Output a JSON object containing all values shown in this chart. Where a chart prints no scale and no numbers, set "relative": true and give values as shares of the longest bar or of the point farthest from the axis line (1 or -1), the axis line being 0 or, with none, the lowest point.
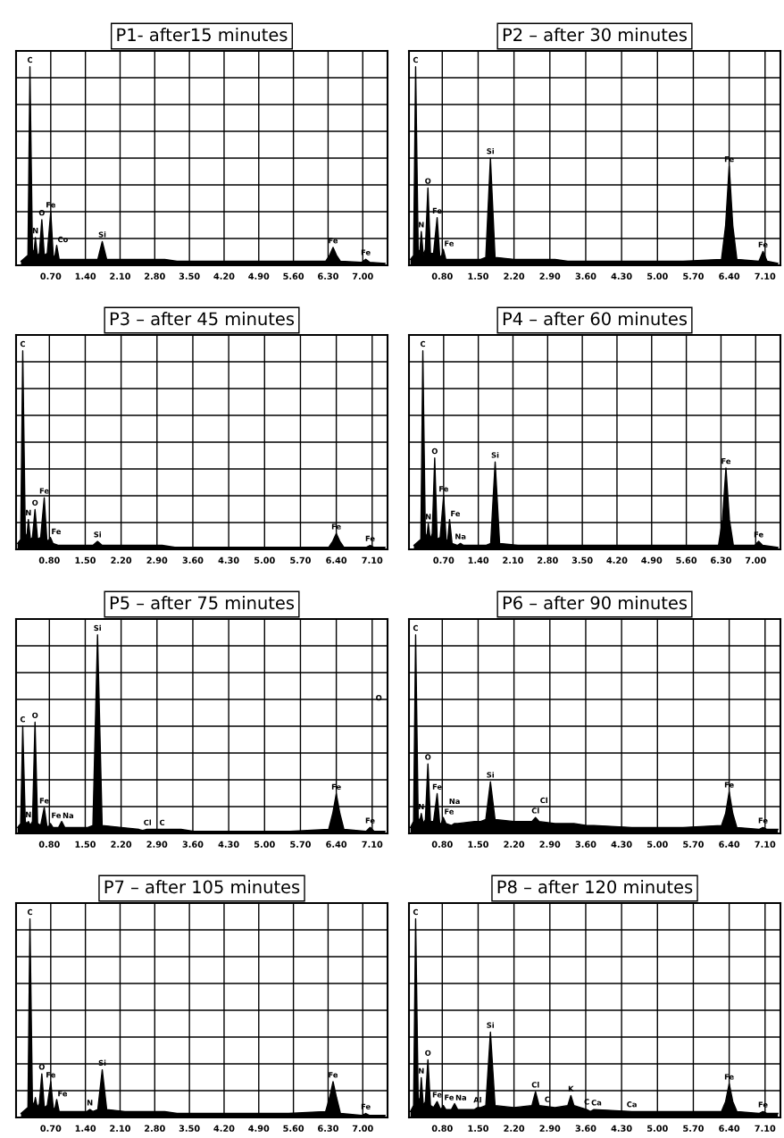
{
  "chart_data": [
    {
      "type": "area",
      "title": "P1- after15 minutes",
      "relative": true,
      "grid": true,
      "xlim": [
        0,
        7.5
      ],
      "xticks": [
        {
          "value": 0.7,
          "label": "0.70"
        },
        {
          "value": 1.4,
          "label": "1.40"
        },
        {
          "value": 2.1,
          "label": "2.10"
        },
        {
          "value": 2.8,
          "label": "2.80"
        },
        {
          "value": 3.5,
          "label": "3.50"
        },
        {
          "value": 4.2,
          "label": "4.20"
        },
        {
          "value": 4.9,
          "label": "4.90"
        },
        {
          "value": 5.6,
          "label": "5.60"
        },
        {
          "value": 6.3,
          "label": "6.30"
        },
        {
          "value": 7.0,
          "label": "7.00"
        }
      ],
      "x": [
        0.1,
        0.24,
        0.28,
        0.33,
        0.36,
        0.39,
        0.43,
        0.47,
        0.52,
        0.57,
        0.63,
        0.7,
        0.75,
        0.78,
        0.82,
        0.87,
        0.98,
        1.04,
        1.1,
        1.43,
        1.49,
        1.55,
        1.65,
        1.74,
        1.83,
        2.2,
        2.55,
        2.62,
        2.69,
        3.0,
        3.25,
        3.31,
        3.37,
        3.62,
        3.69,
        3.76,
        4.5,
        5.5,
        6.25,
        6.33,
        6.4,
        6.47,
        6.55,
        6.98,
        7.06,
        7.14,
        7.45
      ],
      "series": [
        {
          "color": "#000000",
          "values": [
            0.02,
            0.05,
            1,
            0.08,
            0.06,
            0.14,
            0.05,
            0.06,
            0.23,
            0.05,
            0.06,
            0.27,
            0.05,
            0.04,
            0.1,
            0.03,
            0.03,
            0.03,
            0.03,
            0.03,
            0.03,
            0.03,
            0.03,
            0.12,
            0.03,
            0.03,
            0.03,
            0.03,
            0.03,
            0.03,
            0.02,
            0.02,
            0.02,
            0.02,
            0.02,
            0.02,
            0.02,
            0.02,
            0.02,
            0.05,
            0.09,
            0.05,
            0.02,
            0.015,
            0.03,
            0.015,
            0.01
          ]
        }
      ],
      "annotations": [
        {
          "text": "C",
          "x": 0.28,
          "y": 1
        },
        {
          "text": "N",
          "x": 0.39,
          "y": 0.14
        },
        {
          "text": "O",
          "x": 0.52,
          "y": 0.23
        },
        {
          "text": "Fe",
          "x": 0.7,
          "y": 0.27
        },
        {
          "text": "Co",
          "x": 0.82,
          "y": 0.1
        },
        {
          "text": "Si",
          "x": 1.74,
          "y": 0.12
        },
        {
          "text": "Fe",
          "x": 6.4,
          "y": 0.09
        },
        {
          "text": "Fe",
          "x": 7.06,
          "y": 0.03
        }
      ]
    },
    {
      "type": "area",
      "title": "P2 – after 30 minutes",
      "relative": true,
      "grid": true,
      "xlim": [
        0.15,
        7.4
      ],
      "xticks": [
        {
          "value": 0.8,
          "label": "0.80"
        },
        {
          "value": 1.5,
          "label": "1.50"
        },
        {
          "value": 2.2,
          "label": "2.20"
        },
        {
          "value": 2.9,
          "label": "2.90"
        },
        {
          "value": 3.6,
          "label": "3.60"
        },
        {
          "value": 4.3,
          "label": "4.30"
        },
        {
          "value": 5.0,
          "label": "5.00"
        },
        {
          "value": 5.7,
          "label": "5.70"
        },
        {
          "value": 6.4,
          "label": "6.40"
        },
        {
          "value": 7.1,
          "label": "7.10"
        }
      ],
      "x": [
        0.18,
        0.24,
        0.28,
        0.33,
        0.36,
        0.39,
        0.43,
        0.47,
        0.52,
        0.57,
        0.63,
        0.7,
        0.75,
        0.78,
        0.82,
        0.87,
        0.98,
        1.04,
        1.1,
        1.43,
        1.49,
        1.55,
        1.65,
        1.74,
        1.83,
        2.2,
        2.55,
        2.62,
        2.69,
        3.0,
        3.25,
        3.31,
        3.37,
        3.62,
        3.69,
        3.76,
        4.5,
        5.5,
        6.25,
        6.33,
        6.4,
        6.47,
        6.55,
        6.98,
        7.06,
        7.14,
        7.35
      ],
      "series": [
        {
          "color": "#000000",
          "values": [
            0.03,
            0.05,
            1,
            0.08,
            0.06,
            0.17,
            0.05,
            0.08,
            0.39,
            0.06,
            0.06,
            0.24,
            0.05,
            0.04,
            0.08,
            0.03,
            0.03,
            0.03,
            0.03,
            0.03,
            0.03,
            0.03,
            0.04,
            0.54,
            0.04,
            0.03,
            0.03,
            0.03,
            0.03,
            0.03,
            0.02,
            0.02,
            0.02,
            0.02,
            0.02,
            0.02,
            0.02,
            0.02,
            0.03,
            0.2,
            0.5,
            0.2,
            0.03,
            0.02,
            0.07,
            0.02,
            0.01
          ]
        }
      ],
      "annotations": [
        {
          "text": "C",
          "x": 0.28,
          "y": 1
        },
        {
          "text": "N",
          "x": 0.39,
          "y": 0.17
        },
        {
          "text": "O",
          "x": 0.52,
          "y": 0.39
        },
        {
          "text": "Fe",
          "x": 0.7,
          "y": 0.24
        },
        {
          "text": "Fe",
          "x": 0.82,
          "y": 0.08
        },
        {
          "text": "Si",
          "x": 1.74,
          "y": 0.54
        },
        {
          "text": "Fe",
          "x": 6.4,
          "y": 0.5
        },
        {
          "text": "Fe",
          "x": 7.06,
          "y": 0.07
        }
      ]
    },
    {
      "type": "area",
      "title": "P3 – after 45 minutes",
      "relative": true,
      "grid": true,
      "xlim": [
        0.15,
        7.4
      ],
      "xticks": [
        {
          "value": 0.8,
          "label": "0.80"
        },
        {
          "value": 1.5,
          "label": "1.50"
        },
        {
          "value": 2.2,
          "label": "2.20"
        },
        {
          "value": 2.9,
          "label": "2.90"
        },
        {
          "value": 3.6,
          "label": "3.60"
        },
        {
          "value": 4.3,
          "label": "4.30"
        },
        {
          "value": 5.0,
          "label": "5.00"
        },
        {
          "value": 5.7,
          "label": "5.70"
        },
        {
          "value": 6.4,
          "label": "6.40"
        },
        {
          "value": 7.1,
          "label": "7.10"
        }
      ],
      "x": [
        0.18,
        0.24,
        0.28,
        0.33,
        0.36,
        0.39,
        0.43,
        0.47,
        0.52,
        0.57,
        0.63,
        0.7,
        0.75,
        0.78,
        0.82,
        0.87,
        0.98,
        1.04,
        1.1,
        1.43,
        1.49,
        1.55,
        1.65,
        1.74,
        1.83,
        2.2,
        2.55,
        2.62,
        2.69,
        3.0,
        3.25,
        3.31,
        3.37,
        3.62,
        3.69,
        3.76,
        4.5,
        5.5,
        6.25,
        6.33,
        6.4,
        6.47,
        6.55,
        6.98,
        7.06,
        7.14,
        7.35
      ],
      "series": [
        {
          "color": "#000000",
          "values": [
            0.03,
            0.05,
            1,
            0.08,
            0.06,
            0.15,
            0.05,
            0.06,
            0.2,
            0.05,
            0.06,
            0.26,
            0.05,
            0.04,
            0.06,
            0.03,
            0.02,
            0.02,
            0.02,
            0.02,
            0.02,
            0.02,
            0.02,
            0.04,
            0.02,
            0.02,
            0.02,
            0.02,
            0.02,
            0.02,
            0.01,
            0.01,
            0.01,
            0.01,
            0.01,
            0.01,
            0.01,
            0.01,
            0.01,
            0.04,
            0.08,
            0.04,
            0.01,
            0.01,
            0.02,
            0.01,
            0.01
          ]
        }
      ],
      "annotations": [
        {
          "text": "C",
          "x": 0.28,
          "y": 1
        },
        {
          "text": "N",
          "x": 0.39,
          "y": 0.15
        },
        {
          "text": "O",
          "x": 0.52,
          "y": 0.2
        },
        {
          "text": "Fe",
          "x": 0.7,
          "y": 0.26
        },
        {
          "text": "Fe",
          "x": 0.82,
          "y": 0.06
        },
        {
          "text": "Si",
          "x": 1.74,
          "y": 0.04
        },
        {
          "text": "Fe",
          "x": 6.4,
          "y": 0.08
        },
        {
          "text": "Fe",
          "x": 7.06,
          "y": 0.02
        }
      ]
    },
    {
      "type": "area",
      "title": "P4 – after 60 minutes",
      "relative": true,
      "grid": true,
      "xlim": [
        0,
        7.5
      ],
      "xticks": [
        {
          "value": 0.7,
          "label": "0.70"
        },
        {
          "value": 1.4,
          "label": "1.40"
        },
        {
          "value": 2.1,
          "label": "2.10"
        },
        {
          "value": 2.8,
          "label": "2.80"
        },
        {
          "value": 3.5,
          "label": "3.50"
        },
        {
          "value": 4.2,
          "label": "4.20"
        },
        {
          "value": 4.9,
          "label": "4.90"
        },
        {
          "value": 5.6,
          "label": "5.60"
        },
        {
          "value": 6.3,
          "label": "6.30"
        },
        {
          "value": 7.0,
          "label": "7.00"
        }
      ],
      "x": [
        0.1,
        0.24,
        0.28,
        0.33,
        0.36,
        0.39,
        0.43,
        0.47,
        0.52,
        0.57,
        0.63,
        0.7,
        0.75,
        0.78,
        0.82,
        0.87,
        0.98,
        1.04,
        1.1,
        1.43,
        1.49,
        1.55,
        1.65,
        1.74,
        1.83,
        2.2,
        2.55,
        2.62,
        2.69,
        3.0,
        3.25,
        3.31,
        3.37,
        3.62,
        3.69,
        3.76,
        4.5,
        5.5,
        6.25,
        6.33,
        6.4,
        6.47,
        6.55,
        6.98,
        7.06,
        7.14,
        7.45
      ],
      "series": [
        {
          "color": "#000000",
          "values": [
            0.02,
            0.05,
            1,
            0.08,
            0.06,
            0.13,
            0.05,
            0.08,
            0.46,
            0.05,
            0.06,
            0.27,
            0.05,
            0.04,
            0.15,
            0.03,
            0.02,
            0.03,
            0.02,
            0.02,
            0.02,
            0.02,
            0.03,
            0.44,
            0.03,
            0.02,
            0.02,
            0.02,
            0.02,
            0.02,
            0.02,
            0.02,
            0.02,
            0.02,
            0.02,
            0.02,
            0.02,
            0.02,
            0.02,
            0.15,
            0.41,
            0.15,
            0.02,
            0.02,
            0.04,
            0.02,
            0.01
          ]
        }
      ],
      "annotations": [
        {
          "text": "C",
          "x": 0.28,
          "y": 1
        },
        {
          "text": "N",
          "x": 0.39,
          "y": 0.13
        },
        {
          "text": "O",
          "x": 0.52,
          "y": 0.46
        },
        {
          "text": "Fe",
          "x": 0.7,
          "y": 0.27
        },
        {
          "text": "Fe",
          "x": 0.82,
          "y": 0.15
        },
        {
          "text": "Na",
          "x": 1.04,
          "y": 0.03
        },
        {
          "text": "Si",
          "x": 1.74,
          "y": 0.44
        },
        {
          "text": "Fe",
          "x": 6.4,
          "y": 0.41
        },
        {
          "text": "Fe",
          "x": 7.06,
          "y": 0.04
        }
      ]
    },
    {
      "type": "area",
      "title": "P5 – after 75 minutes",
      "relative": true,
      "grid": true,
      "xlim": [
        0.15,
        7.4
      ],
      "xticks": [
        {
          "value": 0.8,
          "label": "0.80"
        },
        {
          "value": 1.5,
          "label": "1.50"
        },
        {
          "value": 2.2,
          "label": "2.20"
        },
        {
          "value": 2.9,
          "label": "2.90"
        },
        {
          "value": 3.6,
          "label": "3.60"
        },
        {
          "value": 4.3,
          "label": "4.30"
        },
        {
          "value": 5.0,
          "label": "5.00"
        },
        {
          "value": 5.7,
          "label": "5.70"
        },
        {
          "value": 6.4,
          "label": "6.40"
        },
        {
          "value": 7.1,
          "label": "7.10"
        }
      ],
      "x": [
        0.18,
        0.24,
        0.28,
        0.33,
        0.36,
        0.39,
        0.43,
        0.47,
        0.52,
        0.57,
        0.63,
        0.7,
        0.75,
        0.78,
        0.82,
        0.87,
        0.98,
        1.04,
        1.1,
        1.43,
        1.49,
        1.55,
        1.65,
        1.74,
        1.83,
        2.2,
        2.55,
        2.62,
        2.69,
        3.0,
        3.25,
        3.31,
        3.37,
        3.62,
        3.69,
        3.76,
        4.5,
        5.5,
        6.25,
        6.33,
        6.4,
        6.47,
        6.55,
        6.98,
        7.06,
        7.14,
        7.35
      ],
      "series": [
        {
          "color": "#000000",
          "values": [
            0.03,
            0.05,
            0.54,
            0.06,
            0.05,
            0.06,
            0.04,
            0.06,
            0.56,
            0.05,
            0.04,
            0.13,
            0.04,
            0.03,
            0.05,
            0.03,
            0.03,
            0.06,
            0.03,
            0.03,
            0.03,
            0.03,
            0.04,
            1,
            0.04,
            0.03,
            0.02,
            0.015,
            0.02,
            0.02,
            0.02,
            0.02,
            0.02,
            0.01,
            0.01,
            0.01,
            0.01,
            0.01,
            0.02,
            0.1,
            0.2,
            0.1,
            0.02,
            0.01,
            0.03,
            0.01,
            0.01
          ]
        }
      ],
      "annotations": [
        {
          "text": "C",
          "x": 0.28,
          "y": 0.54
        },
        {
          "text": "O",
          "x": 0.52,
          "y": 0.56
        },
        {
          "text": "Fe",
          "x": 0.7,
          "y": 0.13
        },
        {
          "text": "N",
          "x": 0.39,
          "y": 0.06
        },
        {
          "text": "Fe",
          "x": 0.82,
          "y": 0.05
        },
        {
          "text": "Na",
          "x": 1.04,
          "y": 0.06
        },
        {
          "text": "Si",
          "x": 1.74,
          "y": 1
        },
        {
          "text": "Cl",
          "x": 2.62,
          "y": 0.015
        },
        {
          "text": "C",
          "x": 3.0,
          "y": 0.02
        },
        {
          "text": "Fe",
          "x": 6.4,
          "y": 0.2
        },
        {
          "text": "Fe",
          "x": 7.06,
          "y": 0.03
        },
        "O"
      ]
    },
    {
      "type": "area",
      "title": "P6 – after 90 minutes",
      "relative": true,
      "grid": true,
      "xlim": [
        0.15,
        7.4
      ],
      "xticks": [
        {
          "value": 0.8,
          "label": "0.80"
        },
        {
          "value": 1.5,
          "label": "1.50"
        },
        {
          "value": 2.2,
          "label": "2.20"
        },
        {
          "value": 2.9,
          "label": "2.90"
        },
        {
          "value": 3.6,
          "label": "3.60"
        },
        {
          "value": 4.3,
          "label": "4.30"
        },
        {
          "value": 5.0,
          "label": "5.00"
        },
        {
          "value": 5.7,
          "label": "5.70"
        },
        {
          "value": 6.4,
          "label": "6.40"
        },
        {
          "value": 7.1,
          "label": "7.10"
        }
      ],
      "x": [
        0.18,
        0.24,
        0.28,
        0.33,
        0.36,
        0.39,
        0.43,
        0.47,
        0.52,
        0.57,
        0.63,
        0.7,
        0.75,
        0.78,
        0.82,
        0.87,
        0.98,
        1.04,
        1.1,
        1.43,
        1.49,
        1.55,
        1.65,
        1.74,
        1.83,
        2.2,
        2.55,
        2.62,
        2.69,
        3.0,
        3.25,
        3.31,
        3.37,
        3.62,
        3.69,
        3.76,
        4.5,
        5.5,
        6.25,
        6.33,
        6.4,
        6.47,
        6.55,
        6.98,
        7.06,
        7.14,
        7.35
      ],
      "series": [
        {
          "color": "#000000",
          "values": [
            0.03,
            0.06,
            1,
            0.08,
            0.06,
            0.1,
            0.05,
            0.07,
            0.35,
            0.06,
            0.06,
            0.2,
            0.05,
            0.05,
            0.08,
            0.05,
            0.04,
            0.05,
            0.05,
            0.06,
            0.06,
            0.06,
            0.07,
            0.26,
            0.07,
            0.06,
            0.06,
            0.08,
            0.06,
            0.05,
            0.05,
            0.05,
            0.05,
            0.04,
            0.04,
            0.04,
            0.03,
            0.03,
            0.04,
            0.1,
            0.21,
            0.1,
            0.03,
            0.02,
            0.03,
            0.02,
            0.02
          ]
        }
      ],
      "annotations": [
        {
          "text": "C",
          "x": 0.28,
          "y": 1
        },
        {
          "text": "O",
          "x": 0.52,
          "y": 0.35
        },
        {
          "text": "Fe",
          "x": 0.7,
          "y": 0.2
        },
        {
          "text": "Fe",
          "x": 0.82,
          "y": 0.08
        },
        {
          "text": "N",
          "x": 0.39,
          "y": 0.1
        },
        {
          "text": "Na",
          "x": 1.04,
          "y": 0.05
        },
        {
          "text": "Si",
          "x": 1.74,
          "y": 0.26
        },
        {
          "text": "Cl",
          "x": 2.62,
          "y": 0.08
        },
        {
          "text": "Cl",
          "x": 2.69,
          "y": 0.06
        },
        {
          "text": "Fe",
          "x": 6.4,
          "y": 0.21
        },
        {
          "text": "Fe",
          "x": 7.06,
          "y": 0.03
        }
      ]
    },
    {
      "type": "area",
      "title": "P7 – after 105 minutes",
      "relative": true,
      "grid": true,
      "xlim": [
        0,
        7.5
      ],
      "xticks": [
        {
          "value": 0.7,
          "label": "0.70"
        },
        {
          "value": 1.4,
          "label": "1.40"
        },
        {
          "value": 2.1,
          "label": "2.10"
        },
        {
          "value": 2.8,
          "label": "2.80"
        },
        {
          "value": 3.5,
          "label": "3.50"
        },
        {
          "value": 4.2,
          "label": "4.20"
        },
        {
          "value": 4.9,
          "label": "4.90"
        },
        {
          "value": 5.6,
          "label": "5.60"
        },
        {
          "value": 6.3,
          "label": "6.30"
        },
        {
          "value": 7.0,
          "label": "7.00"
        }
      ],
      "x": [
        0.1,
        0.24,
        0.28,
        0.33,
        0.36,
        0.39,
        0.43,
        0.47,
        0.52,
        0.57,
        0.63,
        0.7,
        0.75,
        0.78,
        0.82,
        0.87,
        0.98,
        1.04,
        1.1,
        1.43,
        1.49,
        1.55,
        1.65,
        1.74,
        1.83,
        2.2,
        2.55,
        2.62,
        2.69,
        3.0,
        3.25,
        3.31,
        3.37,
        3.62,
        3.69,
        3.76,
        4.5,
        5.5,
        6.25,
        6.33,
        6.4,
        6.47,
        6.55,
        6.98,
        7.06,
        7.14,
        7.45
      ],
      "series": [
        {
          "color": "#000000",
          "values": [
            0.02,
            0.05,
            1,
            0.08,
            0.06,
            0.1,
            0.05,
            0.07,
            0.22,
            0.05,
            0.06,
            0.18,
            0.05,
            0.04,
            0.09,
            0.03,
            0.03,
            0.03,
            0.03,
            0.03,
            0.04,
            0.03,
            0.04,
            0.24,
            0.04,
            0.03,
            0.03,
            0.03,
            0.03,
            0.03,
            0.02,
            0.02,
            0.02,
            0.02,
            0.02,
            0.02,
            0.02,
            0.02,
            0.03,
            0.1,
            0.18,
            0.1,
            0.02,
            0.01,
            0.02,
            0.01,
            0.01
          ]
        }
      ],
      "annotations": [
        {
          "text": "C",
          "x": 0.28,
          "y": 1
        },
        {
          "text": "O",
          "x": 0.52,
          "y": 0.22
        },
        {
          "text": "Fe",
          "x": 0.7,
          "y": 0.18
        },
        {
          "text": "Fe",
          "x": 0.82,
          "y": 0.09
        },
        {
          "text": "N",
          "x": 1.49,
          "y": 0.04
        },
        {
          "text": "Si",
          "x": 1.74,
          "y": 0.24
        },
        {
          "text": "Fe",
          "x": 6.4,
          "y": 0.18
        },
        {
          "text": "Fe",
          "x": 7.06,
          "y": 0.02
        }
      ]
    },
    {
      "type": "area",
      "title": "P8 – after 120 minutes",
      "relative": true,
      "grid": true,
      "xlim": [
        0.15,
        7.4
      ],
      "xticks": [
        {
          "value": 0.8,
          "label": "0.80"
        },
        {
          "value": 1.5,
          "label": "1.50"
        },
        {
          "value": 2.2,
          "label": "2.20"
        },
        {
          "value": 2.9,
          "label": "2.90"
        },
        {
          "value": 3.6,
          "label": "3.60"
        },
        {
          "value": 4.3,
          "label": "4.30"
        },
        {
          "value": 5.0,
          "label": "5.00"
        },
        {
          "value": 5.7,
          "label": "5.70"
        },
        {
          "value": 6.4,
          "label": "6.40"
        },
        {
          "value": 7.1,
          "label": "7.10"
        }
      ],
      "x": [
        0.18,
        0.24,
        0.28,
        0.33,
        0.36,
        0.39,
        0.43,
        0.47,
        0.52,
        0.57,
        0.63,
        0.7,
        0.75,
        0.78,
        0.82,
        0.87,
        0.98,
        1.04,
        1.1,
        1.43,
        1.49,
        1.55,
        1.65,
        1.74,
        1.83,
        2.2,
        2.55,
        2.62,
        2.69,
        3.0,
        3.25,
        3.31,
        3.37,
        3.62,
        3.69,
        3.76,
        4.5,
        5.5,
        6.25,
        6.33,
        6.4,
        6.47,
        6.55,
        6.98,
        7.06,
        7.14,
        7.35
      ],
      "series": [
        {
          "color": "#000000",
          "values": [
            0.03,
            0.06,
            1,
            0.1,
            0.08,
            0.2,
            0.06,
            0.08,
            0.29,
            0.06,
            0.05,
            0.08,
            0.05,
            0.04,
            0.06,
            0.04,
            0.04,
            0.07,
            0.04,
            0.04,
            0.05,
            0.05,
            0.06,
            0.43,
            0.06,
            0.05,
            0.06,
            0.13,
            0.06,
            0.05,
            0.06,
            0.11,
            0.06,
            0.04,
            0.03,
            0.04,
            0.03,
            0.03,
            0.03,
            0.08,
            0.17,
            0.08,
            0.03,
            0.02,
            0.03,
            0.02,
            0.02
          ]
        }
      ],
      "annotations": [
        {
          "text": "C",
          "x": 0.28,
          "y": 1
        },
        {
          "text": "N",
          "x": 0.39,
          "y": 0.2
        },
        {
          "text": "O",
          "x": 0.52,
          "y": 0.29
        },
        {
          "text": "Fe",
          "x": 0.7,
          "y": 0.08
        },
        {
          "text": "Fe",
          "x": 0.82,
          "y": 0.06
        },
        {
          "text": "Na",
          "x": 1.04,
          "y": 0.07
        },
        {
          "text": "Al",
          "x": 1.49,
          "y": 0.05
        },
        {
          "text": "Si",
          "x": 1.74,
          "y": 0.43
        },
        {
          "text": "Cl",
          "x": 2.62,
          "y": 0.13
        },
        {
          "text": "C",
          "x": 2.78,
          "y": 0.05
        },
        {
          "text": "K",
          "x": 3.31,
          "y": 0.11
        },
        {
          "text": "C",
          "x": 3.55,
          "y": 0.04
        },
        {
          "text": "Ca",
          "x": 3.69,
          "y": 0.03
        },
        {
          "text": "Ca",
          "x": 4.5,
          "y": 0.03
        },
        {
          "text": "Fe",
          "x": 6.4,
          "y": 0.17
        },
        {
          "text": "Fe",
          "x": 7.06,
          "y": 0.03
        }
      ]
    }
  ]
}
